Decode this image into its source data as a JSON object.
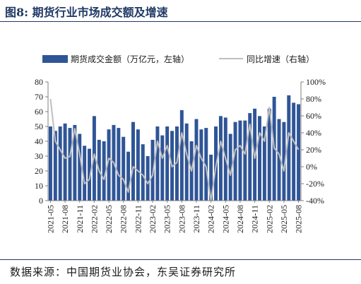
{
  "figure": {
    "label": "图8:",
    "title": "期货行业市场成交额及增速",
    "source": "数据来源：中国期货业协会，东吴证券研究所"
  },
  "chart_data": {
    "type": "bar",
    "categories": [
      "2021-05",
      "2021-06",
      "2021-07",
      "2021-08",
      "2021-09",
      "2021-10",
      "2021-11",
      "2021-12",
      "2022-01",
      "2022-02",
      "2022-03",
      "2022-04",
      "2022-05",
      "2022-06",
      "2022-07",
      "2022-08",
      "2022-09",
      "2022-10",
      "2022-11",
      "2022-12",
      "2023-01",
      "2023-02",
      "2023-03",
      "2023-04",
      "2023-05",
      "2023-06",
      "2023-07",
      "2023-08",
      "2023-09",
      "2023-10",
      "2023-11",
      "2023-12",
      "2024-01",
      "2024-02",
      "2024-03",
      "2024-04",
      "2024-05",
      "2024-06",
      "2024-07",
      "2024-08",
      "2024-09",
      "2024-10",
      "2024-11",
      "2024-12",
      "2025-01",
      "2025-02",
      "2025-03",
      "2025-04",
      "2025-05",
      "2025-06",
      "2025-07",
      "2025-08"
    ],
    "x_tick_labels": [
      "2021-05",
      "2021-08",
      "2021-11",
      "2022-02",
      "2022-05",
      "2022-08",
      "2022-11",
      "2023-02",
      "2023-05",
      "2023-08",
      "2023-11",
      "2024-02",
      "2024-05",
      "2024-08",
      "2024-11",
      "2025-02",
      "2025-05",
      "2025-08"
    ],
    "series": [
      {
        "name": "期货成交金额（万亿元，左轴）",
        "axis": "left",
        "kind": "bar",
        "color": "#2f5597",
        "values": [
          50,
          47,
          50,
          52,
          49,
          51,
          45,
          37,
          35,
          57,
          41,
          40,
          48,
          51,
          49,
          43,
          33,
          53,
          48,
          38,
          30,
          41,
          50,
          44,
          50,
          47,
          50,
          61,
          52,
          40,
          55,
          48,
          49,
          31,
          50,
          57,
          56,
          45,
          53,
          54,
          54,
          59,
          62,
          57,
          50,
          62,
          70,
          55,
          53,
          71,
          66,
          65
        ]
      },
      {
        "name": "同比增速（右轴）",
        "axis": "right",
        "kind": "line",
        "color": "#bfbfbf",
        "values": [
          80,
          30,
          20,
          10,
          12,
          45,
          15,
          -20,
          -15,
          15,
          -5,
          -15,
          10,
          5,
          -10,
          -15,
          -30,
          0,
          -5,
          -10,
          -20,
          -10,
          30,
          10,
          25,
          0,
          5,
          40,
          15,
          -5,
          25,
          10,
          0,
          -40,
          0,
          30,
          10,
          -10,
          20,
          25,
          15,
          50,
          10,
          40,
          30,
          70,
          22,
          15,
          -5,
          40,
          30,
          20
        ]
      }
    ],
    "y_left": {
      "min": 0,
      "max": 80,
      "ticks": [
        0,
        10,
        20,
        30,
        40,
        50,
        60,
        70,
        80
      ]
    },
    "y_right": {
      "min": -40,
      "max": 100,
      "ticks": [
        "-40%",
        "-20%",
        "0%",
        "20%",
        "40%",
        "60%",
        "80%",
        "100%"
      ]
    },
    "legend_position": "top",
    "grid": false
  }
}
